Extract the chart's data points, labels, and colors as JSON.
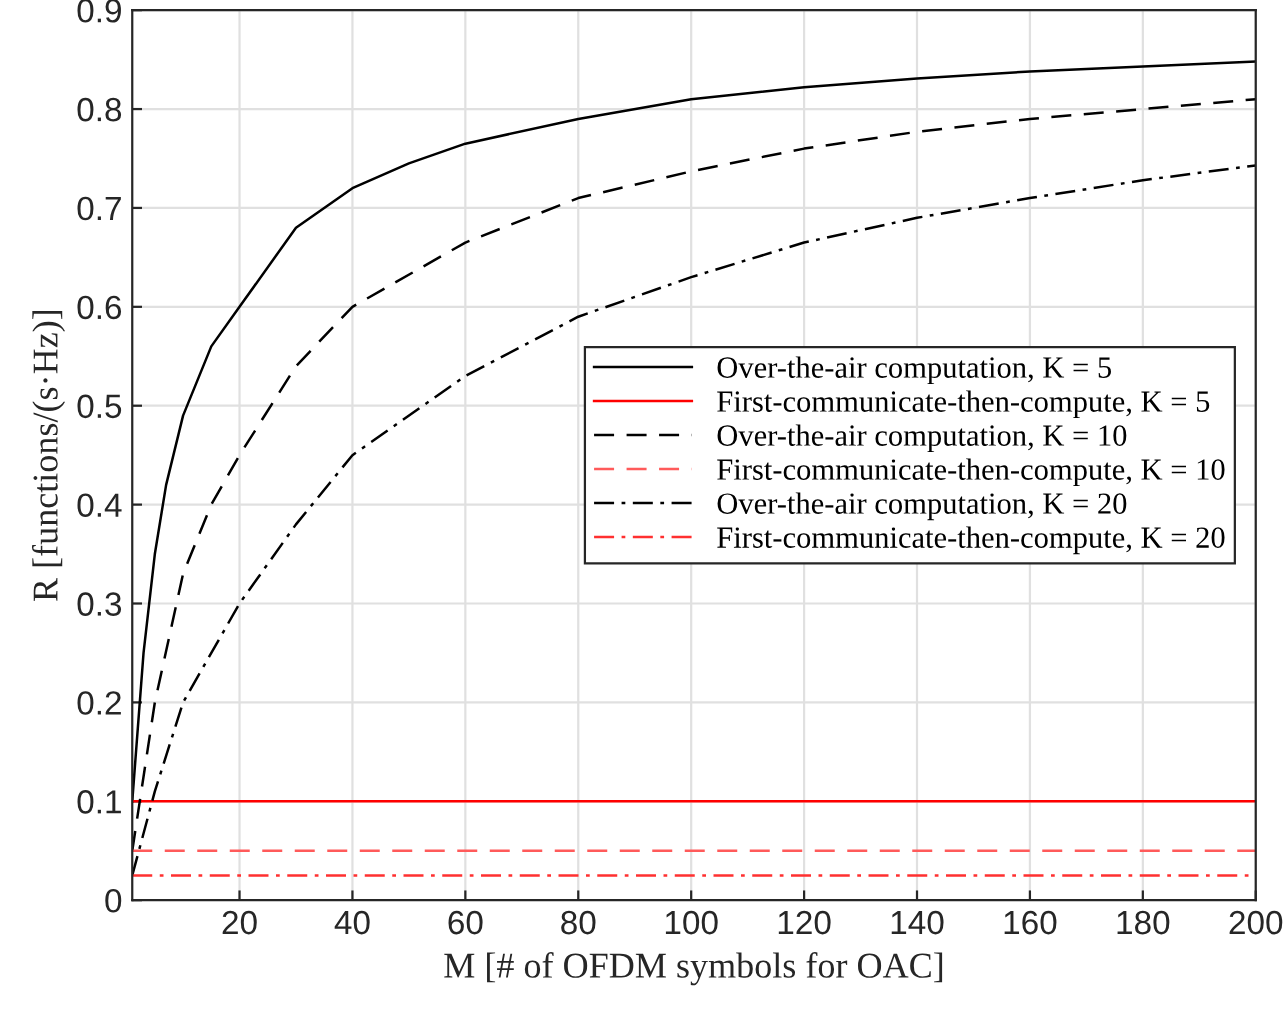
{
  "chart_data": {
    "type": "line",
    "xlabel": "M [# of OFDM symbols for OAC]",
    "ylabel": "R [functions/(s·Hz)]",
    "xlim": [
      1,
      200
    ],
    "xticks": [
      20,
      40,
      60,
      80,
      100,
      120,
      140,
      160,
      180,
      200
    ],
    "ylim": [
      0,
      0.9
    ],
    "yticks": [
      0,
      0.1,
      0.2,
      0.3,
      0.4,
      0.5,
      0.6,
      0.7,
      0.8,
      0.9
    ],
    "grid": true,
    "legend": "right",
    "series": [
      {
        "name": "Over-the-air computation, K = 5",
        "color": "#000000",
        "line_style": "solid",
        "x": [
          1,
          3,
          5,
          7,
          10,
          15,
          20,
          30,
          40,
          50,
          60,
          80,
          100,
          120,
          140,
          160,
          180,
          200
        ],
        "values": [
          0.1,
          0.25,
          0.35,
          0.42,
          0.49,
          0.56,
          0.6,
          0.68,
          0.72,
          0.745,
          0.765,
          0.79,
          0.81,
          0.822,
          0.831,
          0.838,
          0.843,
          0.848
        ]
      },
      {
        "name": "First-communicate-then-compute, K = 5",
        "color": "#ff0000",
        "line_style": "solid",
        "x": [
          1,
          200
        ],
        "values": [
          0.1,
          0.1
        ]
      },
      {
        "name": "Over-the-air computation, K = 10",
        "color": "#000000",
        "line_style": "dashed",
        "x": [
          1,
          5,
          10,
          15,
          20,
          30,
          40,
          60,
          80,
          100,
          120,
          140,
          160,
          180,
          200
        ],
        "values": [
          0.05,
          0.2,
          0.33,
          0.4,
          0.45,
          0.54,
          0.6,
          0.665,
          0.71,
          0.737,
          0.76,
          0.777,
          0.79,
          0.8,
          0.81
        ]
      },
      {
        "name": "First-communicate-then-compute, K = 10",
        "color": "#ff5a5a",
        "line_style": "dashed",
        "x": [
          1,
          200
        ],
        "values": [
          0.05,
          0.05
        ]
      },
      {
        "name": "Over-the-air computation, K = 20",
        "color": "#000000",
        "line_style": "dashdot",
        "x": [
          1,
          5,
          10,
          20,
          30,
          40,
          60,
          80,
          100,
          120,
          140,
          160,
          180,
          200
        ],
        "values": [
          0.025,
          0.11,
          0.2,
          0.3,
          0.38,
          0.45,
          0.53,
          0.59,
          0.63,
          0.665,
          0.69,
          0.71,
          0.728,
          0.743
        ]
      },
      {
        "name": "First-communicate-then-compute, K = 20",
        "color": "#ff3030",
        "line_style": "dashdot",
        "x": [
          1,
          200
        ],
        "values": [
          0.025,
          0.025
        ]
      }
    ]
  }
}
